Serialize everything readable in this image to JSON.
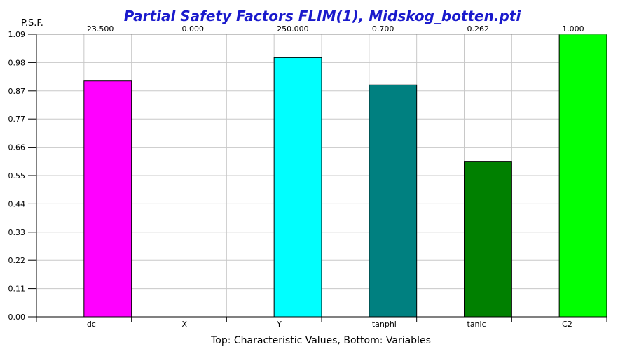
{
  "chart_data": {
    "type": "bar",
    "title": "Partial Safety Factors FLIM(1), Midskog_botten.pti",
    "ylabel": "P.S.F.",
    "xlabel": "Top: Characteristic Values, Bottom: Variables",
    "ylim": [
      0,
      1.09
    ],
    "yticks": [
      "0.00",
      "0.11",
      "0.22",
      "0.33",
      "0.44",
      "0.55",
      "0.66",
      "0.77",
      "0.87",
      "0.98",
      "1.09"
    ],
    "grid": true,
    "categories": [
      "dc",
      "X",
      "Y",
      "tanphi",
      "tanic",
      "C2"
    ],
    "characteristic_values": [
      "23.500",
      "0.000",
      "250.000",
      "0.700",
      "0.262",
      "1.000"
    ],
    "values": [
      0.91,
      0.0,
      1.0,
      0.895,
      0.6,
      1.09
    ],
    "colors": [
      "#ff00ff",
      "#ffffff",
      "#00ffff",
      "#008080",
      "#008000",
      "#00ff00"
    ]
  }
}
